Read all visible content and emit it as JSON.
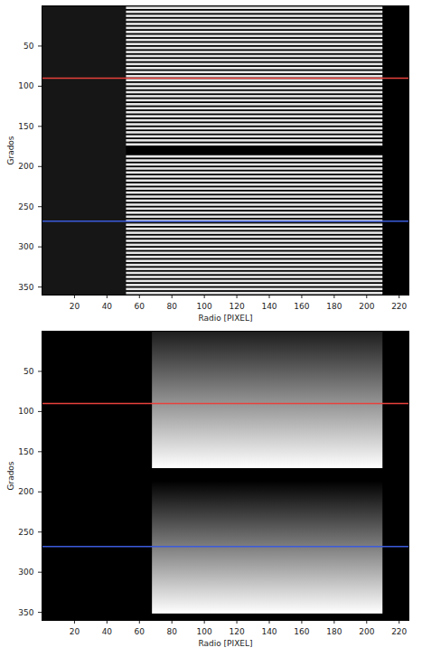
{
  "chart_data": [
    {
      "type": "fringes",
      "xlabel": "Radio [PIXEL]",
      "ylabel": "Grados",
      "xlim": [
        0,
        226
      ],
      "xticks": [
        20,
        40,
        60,
        80,
        100,
        120,
        140,
        160,
        180,
        200,
        220
      ],
      "ylim": [
        360,
        0
      ],
      "yticks": [
        50,
        100,
        150,
        200,
        250,
        300,
        350
      ],
      "dim_region": [
        0,
        52
      ],
      "fringe_x": [
        52,
        210
      ],
      "fringe_width": 3,
      "fringes": [
        3,
        8,
        13,
        18,
        23,
        28,
        33,
        38,
        43,
        48,
        53,
        58,
        63,
        68,
        73,
        78,
        83,
        88,
        93,
        98,
        103,
        108,
        113,
        118,
        123,
        128,
        133,
        138,
        143,
        148,
        153,
        158,
        163,
        168,
        173,
        188,
        193,
        198,
        203,
        208,
        213,
        218,
        223,
        228,
        233,
        238,
        243,
        248,
        253,
        258,
        263,
        268,
        273,
        278,
        283,
        288,
        293,
        298,
        303,
        308,
        313,
        318,
        323,
        328,
        333,
        338,
        343,
        348,
        353,
        358
      ],
      "lines": [
        {
          "y": 90,
          "color": "#e8413c"
        },
        {
          "y": 268,
          "color": "#3b5bdb"
        }
      ]
    },
    {
      "type": "gradient",
      "xlabel": "Radio [PIXEL]",
      "ylabel": "Grados",
      "xlim": [
        0,
        226
      ],
      "xticks": [
        20,
        40,
        60,
        80,
        100,
        120,
        140,
        160,
        180,
        200,
        220
      ],
      "ylim": [
        360,
        0
      ],
      "yticks": [
        50,
        100,
        150,
        200,
        250,
        300,
        350
      ],
      "segments": [
        {
          "x": [
            68,
            210
          ],
          "y": [
            0,
            171
          ],
          "colors": [
            "#1c1c1c",
            "#ffffff"
          ]
        },
        {
          "x": [
            68,
            210
          ],
          "y": [
            187,
            352
          ],
          "colors": [
            "#000000",
            "#ffffff"
          ]
        }
      ],
      "lines": [
        {
          "y": 90,
          "color": "#e8413c"
        },
        {
          "y": 268,
          "color": "#3b5bdb"
        }
      ]
    }
  ]
}
